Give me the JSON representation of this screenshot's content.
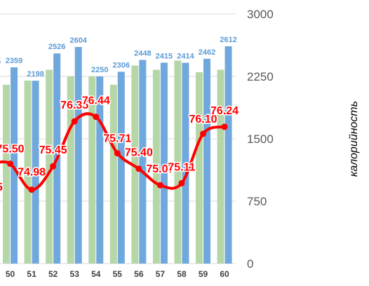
{
  "chart_data": {
    "type": "bar",
    "categories": [
      "50",
      "51",
      "52",
      "53",
      "54",
      "55",
      "56",
      "57",
      "58",
      "59",
      "60"
    ],
    "series": [
      {
        "name": "",
        "kind": "bar",
        "axis": "right",
        "color": "#b5d6a7",
        "values": [
          2150,
          2200,
          2330,
          2250,
          2250,
          2150,
          2380,
          2330,
          2440,
          2300,
          2330
        ]
      },
      {
        "name": "",
        "kind": "bar",
        "axis": "right",
        "color": "#6fa8dc",
        "values": [
          2359,
          2198,
          2526,
          2604,
          2250,
          2306,
          2448,
          2415,
          2414,
          2462,
          2612
        ],
        "labels": [
          "2359",
          "2198",
          "2526",
          "2604",
          "2250",
          "2306",
          "2448",
          "2415",
          "2414",
          "2462",
          "2612"
        ]
      },
      {
        "name": "",
        "kind": "line",
        "axis": "left",
        "color": "#ff0000",
        "values": [
          75.5,
          74.98,
          75.45,
          76.35,
          76.44,
          75.71,
          75.4,
          75.07,
          75.11,
          76.1,
          76.24
        ],
        "labels": [
          "75.50",
          "74.98",
          "75.45",
          "76.35",
          "76.44",
          "75.71",
          "75.40",
          "75.07",
          "75.11",
          "76.10",
          "76.24"
        ]
      }
    ],
    "left_ylim": [
      73.5,
      78.5
    ],
    "right_ylim": [
      0,
      3000
    ],
    "right_ticks": [
      "0",
      "750",
      "1500",
      "2250",
      "3000"
    ],
    "ylabel_right": "калорийность",
    "grid": true,
    "partial_left_labels": {
      "bar": "5",
      "line": "5"
    }
  }
}
